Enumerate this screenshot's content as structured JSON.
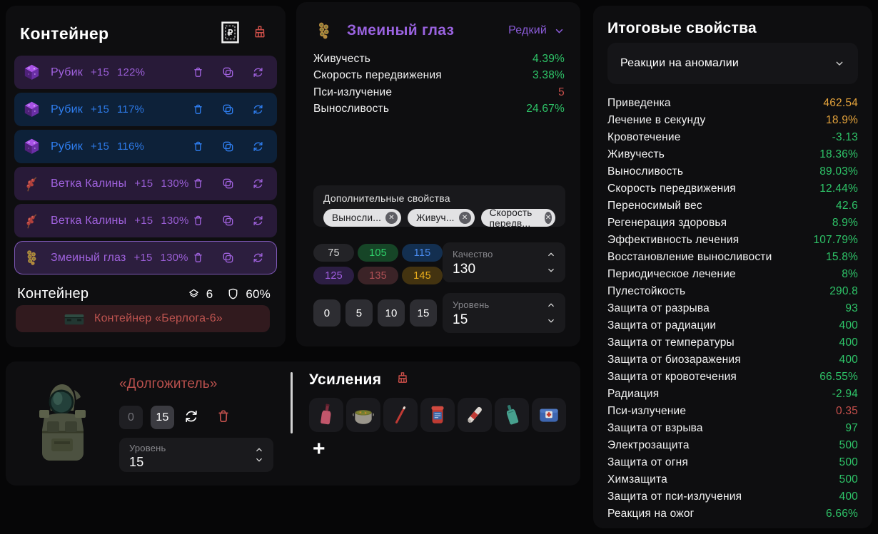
{
  "colors": {
    "positive": "#2ec468",
    "warning": "#e3a23b",
    "negative": "#c8504c",
    "rarity_purple": "#9a63e0",
    "artifact_blue": "#2f7ff2",
    "danger_red": "#cd4f49"
  },
  "glyphs": {
    "remove": "✕"
  },
  "left_panel": {
    "title": "Контейнер",
    "header_icons": [
      "ruble-receipt-icon",
      "broom-icon"
    ],
    "items": [
      {
        "name": "Рубик",
        "upgrade": "+15",
        "quality": "122%",
        "variant": "purple",
        "icon": "rubik-cube",
        "selected": false
      },
      {
        "name": "Рубик",
        "upgrade": "+15",
        "quality": "117%",
        "variant": "blue",
        "icon": "rubik-cube",
        "selected": false
      },
      {
        "name": "Рубик",
        "upgrade": "+15",
        "quality": "116%",
        "variant": "blue",
        "icon": "rubik-cube",
        "selected": false
      },
      {
        "name": "Ветка Калины",
        "upgrade": "+15",
        "quality": "130%",
        "variant": "purple",
        "icon": "kalina-branch",
        "selected": false
      },
      {
        "name": "Ветка Калины",
        "upgrade": "+15",
        "quality": "130%",
        "variant": "purple",
        "icon": "kalina-branch",
        "selected": false
      },
      {
        "name": "Змеиный глаз",
        "upgrade": "+15",
        "quality": "130%",
        "variant": "purple",
        "icon": "snake-eye",
        "selected": true
      }
    ],
    "row_action_icons": [
      "trash-icon",
      "copy-icon",
      "refresh-icon"
    ],
    "footer": {
      "label": "Контейнер",
      "slots": "6",
      "protection": "60%"
    },
    "container_item": {
      "label": "Контейнер «Берлога-6»",
      "icon": "container-box"
    }
  },
  "detail_panel": {
    "title": "Змеиный глаз",
    "rarity": "Редкий",
    "icon": "snake-eye",
    "stats": [
      {
        "label": "Живучесть",
        "value": "4.39%",
        "color": "green"
      },
      {
        "label": "Скорость передвижения",
        "value": "3.38%",
        "color": "green"
      },
      {
        "label": "Пси-излучение",
        "value": "5",
        "color": "red"
      },
      {
        "label": "Выносливость",
        "value": "24.67%",
        "color": "green"
      }
    ],
    "extra_props": {
      "label": "Дополнительные свойства",
      "chips": [
        "Выносли...",
        "Живуч...",
        "Скорость передв..."
      ]
    },
    "quality": {
      "select_label": "Качество",
      "select_value": "130",
      "options": [
        {
          "value": "75",
          "variant": "gray"
        },
        {
          "value": "105",
          "variant": "green"
        },
        {
          "value": "115",
          "variant": "blue"
        },
        {
          "value": "125",
          "variant": "purple"
        },
        {
          "value": "135",
          "variant": "red"
        },
        {
          "value": "145",
          "variant": "yellow"
        }
      ]
    },
    "level": {
      "select_label": "Уровень",
      "select_value": "15",
      "options": [
        "0",
        "5",
        "10",
        "15"
      ]
    }
  },
  "armor_panel": {
    "name": "«Долгожитель»",
    "level_options": [
      "0",
      "15"
    ],
    "selected_level": "15",
    "select_label": "Уровень",
    "select_value": "15",
    "action_icons": [
      "refresh-icon",
      "trash-icon"
    ]
  },
  "boosts_panel": {
    "title": "Усиления",
    "clear_icon": "broom-icon",
    "items": [
      "wine-bottle",
      "stew-pot",
      "red-flare",
      "supplement-jar",
      "injector-tube",
      "teal-bottle",
      "first-aid-kit"
    ],
    "add_label": "+"
  },
  "summary_panel": {
    "title": "Итоговые свойства",
    "filter": {
      "value": "Реакции на аномалии"
    },
    "stats": [
      {
        "label": "Приведенка",
        "value": "462.54",
        "color": "orange"
      },
      {
        "label": "Лечение в секунду",
        "value": "18.9%",
        "color": "orange"
      },
      {
        "label": "Кровотечение",
        "value": "-3.13",
        "color": "green"
      },
      {
        "label": "Живучесть",
        "value": "18.36%",
        "color": "green"
      },
      {
        "label": "Выносливость",
        "value": "89.03%",
        "color": "green"
      },
      {
        "label": "Скорость передвижения",
        "value": "12.44%",
        "color": "green"
      },
      {
        "label": "Переносимый вес",
        "value": "42.6",
        "color": "green"
      },
      {
        "label": "Регенерация здоровья",
        "value": "8.9%",
        "color": "green"
      },
      {
        "label": "Эффективность лечения",
        "value": "107.79%",
        "color": "green"
      },
      {
        "label": "Восстановление выносливости",
        "value": "15.8%",
        "color": "green"
      },
      {
        "label": "Периодическое лечение",
        "value": "8%",
        "color": "green"
      },
      {
        "label": "Пулестойкость",
        "value": "290.8",
        "color": "green"
      },
      {
        "label": "Защита от разрыва",
        "value": "93",
        "color": "green"
      },
      {
        "label": "Защита от радиации",
        "value": "400",
        "color": "green"
      },
      {
        "label": "Защита от температуры",
        "value": "400",
        "color": "green"
      },
      {
        "label": "Защита от биозаражения",
        "value": "400",
        "color": "green"
      },
      {
        "label": "Защита от кровотечения",
        "value": "66.55%",
        "color": "green"
      },
      {
        "label": "Радиация",
        "value": "-2.94",
        "color": "green"
      },
      {
        "label": "Пси-излучение",
        "value": "0.35",
        "color": "red"
      },
      {
        "label": "Защита от взрыва",
        "value": "97",
        "color": "green"
      },
      {
        "label": "Электрозащита",
        "value": "500",
        "color": "green"
      },
      {
        "label": "Защита от огня",
        "value": "500",
        "color": "green"
      },
      {
        "label": "Химзащита",
        "value": "500",
        "color": "green"
      },
      {
        "label": "Защита от пси-излучения",
        "value": "400",
        "color": "green"
      },
      {
        "label": "Реакция на ожог",
        "value": "6.66%",
        "color": "green"
      }
    ]
  }
}
